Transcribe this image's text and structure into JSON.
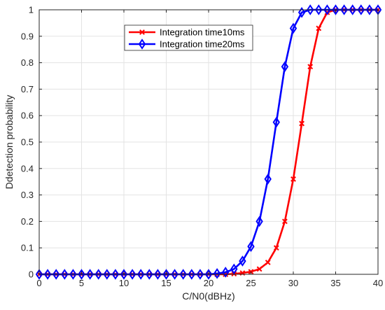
{
  "chart_data": {
    "type": "line",
    "xlabel": "C/N0(dBHz)",
    "ylabel": "Ddetection probability",
    "xlim": [
      0,
      40
    ],
    "ylim": [
      0,
      1
    ],
    "xticks": [
      0,
      5,
      10,
      15,
      20,
      25,
      30,
      35,
      40
    ],
    "yticks": [
      0,
      0.1,
      0.2,
      0.3,
      0.4,
      0.5,
      0.6,
      0.7,
      0.8,
      0.9,
      1
    ],
    "grid": true,
    "legend_position": "top-center",
    "series": [
      {
        "name": "Integration time10ms",
        "color": "#ff0000",
        "marker": "x",
        "x": [
          0,
          1,
          2,
          3,
          4,
          5,
          6,
          7,
          8,
          9,
          10,
          11,
          12,
          13,
          14,
          15,
          16,
          17,
          18,
          19,
          20,
          21,
          22,
          23,
          24,
          25,
          26,
          27,
          28,
          29,
          30,
          31,
          32,
          33,
          34,
          35,
          36,
          37,
          38,
          39,
          40
        ],
        "y": [
          0,
          0,
          0,
          0,
          0,
          0,
          0,
          0,
          0,
          0,
          0,
          0,
          0,
          0,
          0,
          0,
          0,
          0,
          0,
          0,
          0,
          0,
          0,
          0.002,
          0.005,
          0.01,
          0.02,
          0.045,
          0.1,
          0.2,
          0.36,
          0.57,
          0.785,
          0.93,
          0.99,
          1,
          1,
          1,
          1,
          1,
          1
        ]
      },
      {
        "name": "Integration time20ms",
        "color": "#0000ff",
        "marker": "diamond",
        "x": [
          0,
          1,
          2,
          3,
          4,
          5,
          6,
          7,
          8,
          9,
          10,
          11,
          12,
          13,
          14,
          15,
          16,
          17,
          18,
          19,
          20,
          21,
          22,
          23,
          24,
          25,
          26,
          27,
          28,
          29,
          30,
          31,
          32,
          33,
          34,
          35,
          36,
          37,
          38,
          39,
          40
        ],
        "y": [
          0,
          0,
          0,
          0,
          0,
          0,
          0,
          0,
          0,
          0,
          0,
          0,
          0,
          0,
          0,
          0,
          0,
          0,
          0,
          0,
          0,
          0.003,
          0.008,
          0.02,
          0.05,
          0.105,
          0.2,
          0.36,
          0.575,
          0.785,
          0.93,
          0.99,
          1,
          1,
          1,
          1,
          1,
          1,
          1,
          1,
          1
        ]
      }
    ]
  }
}
